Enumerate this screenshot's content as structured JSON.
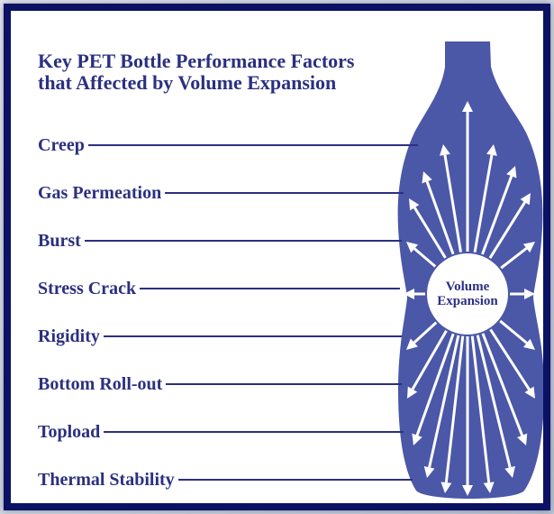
{
  "title_lines": [
    "Key PET Bottle Performance Factors",
    "that Affected by Volume Expansion"
  ],
  "factors": [
    "Creep",
    "Gas Permeation",
    "Burst",
    "Stress Crack",
    "Rigidity",
    "Bottom Roll-out",
    "Topload",
    "Thermal Stability"
  ],
  "center_label": "Volume Expansion"
}
